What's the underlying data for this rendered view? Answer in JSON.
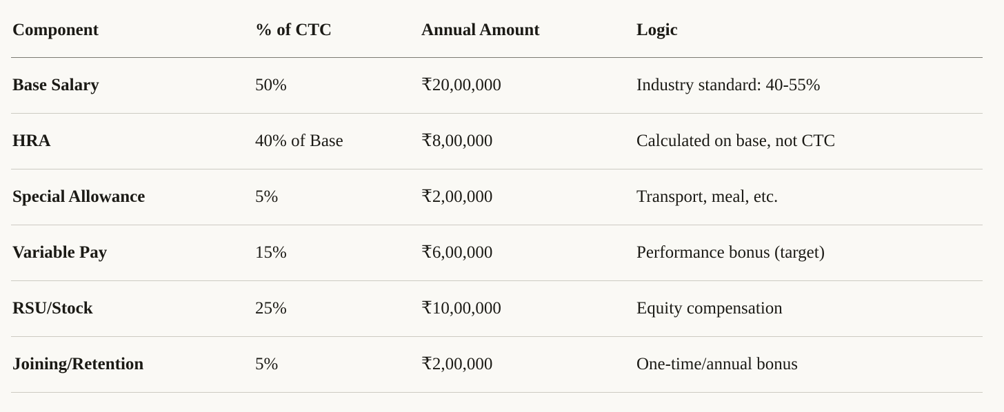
{
  "table": {
    "columns": [
      {
        "label": "Component"
      },
      {
        "label": "% of CTC"
      },
      {
        "label": "Annual Amount"
      },
      {
        "label": "Logic"
      }
    ],
    "rows": [
      {
        "component": "Base Salary",
        "pct": "50%",
        "amount": "₹20,00,000",
        "logic": "Industry standard: 40-55%"
      },
      {
        "component": "HRA",
        "pct": "40% of Base",
        "amount": "₹8,00,000",
        "logic": "Calculated on base, not CTC"
      },
      {
        "component": "Special Allowance",
        "pct": "5%",
        "amount": "₹2,00,000",
        "logic": "Transport, meal, etc."
      },
      {
        "component": "Variable Pay",
        "pct": "15%",
        "amount": "₹6,00,000",
        "logic": "Performance bonus (target)"
      },
      {
        "component": "RSU/Stock",
        "pct": "25%",
        "amount": "₹10,00,000",
        "logic": "Equity compensation"
      },
      {
        "component": "Joining/Retention",
        "pct": "5%",
        "amount": "₹2,00,000",
        "logic": "One-time/annual bonus"
      }
    ],
    "colors": {
      "background": "#FAF9F5",
      "text": "#1B1A15",
      "header_border": "#7A7971",
      "row_border": "#CCCAC2"
    }
  }
}
